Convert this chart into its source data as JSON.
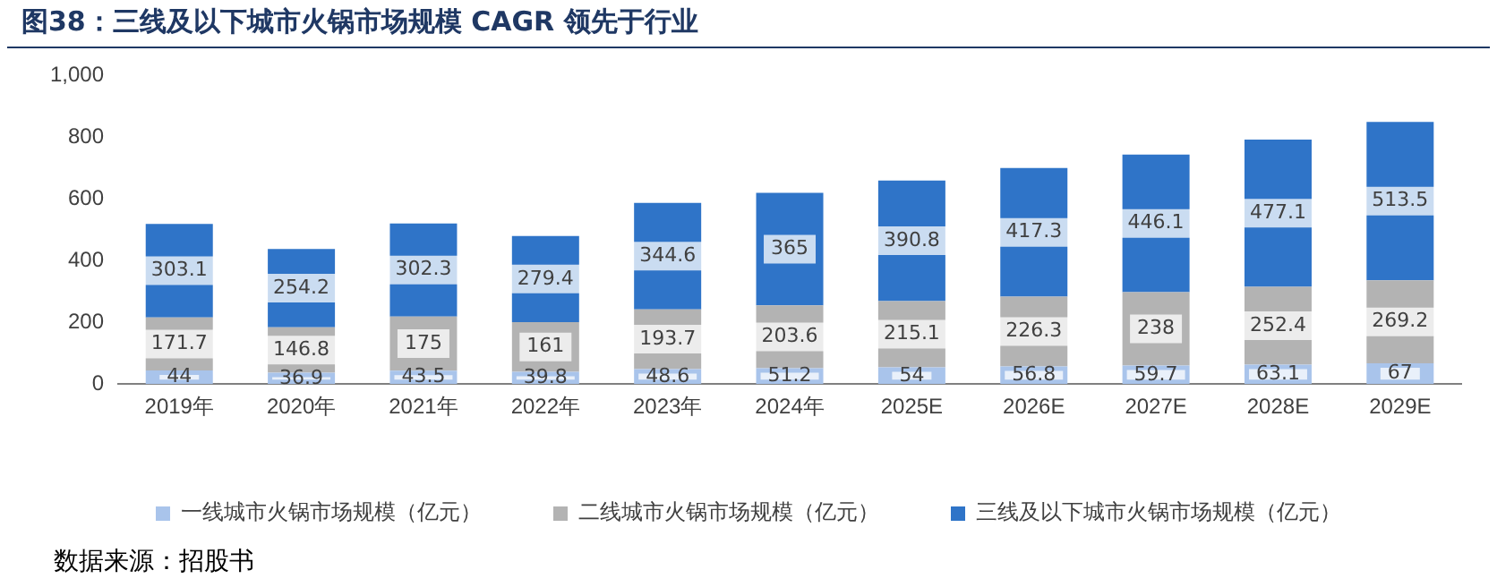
{
  "chart_data": {
    "type": "bar",
    "stacked": true,
    "title": "图38：三线及以下城市火锅市场规模 CAGR 领先于行业",
    "categories": [
      "2019年",
      "2020年",
      "2021年",
      "2022年",
      "2023年",
      "2024年",
      "2025E",
      "2026E",
      "2027E",
      "2028E",
      "2029E"
    ],
    "series": [
      {
        "name": "一线城市火锅市场规模（亿元）",
        "color": "#a9c4eb",
        "values": [
          44,
          36.9,
          43.5,
          39.8,
          48.6,
          51.2,
          54,
          56.8,
          59.7,
          63.1,
          67
        ]
      },
      {
        "name": "二线城市火锅市场规模（亿元）",
        "color": "#b3b3b3",
        "values": [
          171.7,
          146.8,
          175,
          161,
          193.7,
          203.6,
          215.1,
          226.3,
          238,
          252.4,
          269.2
        ]
      },
      {
        "name": "三线及以下城市火锅市场规模（亿元）",
        "color": "#2f74c8",
        "values": [
          303.1,
          254.2,
          302.3,
          279.4,
          344.6,
          365,
          390.8,
          417.3,
          446.1,
          477.1,
          513.5
        ]
      }
    ],
    "ylim": [
      0,
      1000
    ],
    "yticks": [
      0,
      200,
      400,
      600,
      800,
      {
        "value": 1000,
        "label": "1,000"
      }
    ],
    "grid": false,
    "legend": "bottom",
    "data_labels": true,
    "annotations": [
      "数据来源：招股书"
    ]
  }
}
